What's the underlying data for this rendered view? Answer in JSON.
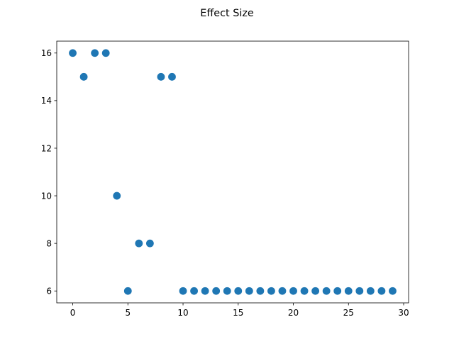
{
  "chart_data": {
    "type": "scatter",
    "title": "Effect Size",
    "xlabel": "",
    "ylabel": "",
    "x": [
      0,
      1,
      2,
      3,
      4,
      5,
      6,
      7,
      8,
      9,
      10,
      11,
      12,
      13,
      14,
      15,
      16,
      17,
      18,
      19,
      20,
      21,
      22,
      23,
      24,
      25,
      26,
      27,
      28,
      29
    ],
    "y": [
      16,
      15,
      16,
      16,
      10,
      6,
      8,
      8,
      15,
      15,
      6,
      6,
      6,
      6,
      6,
      6,
      6,
      6,
      6,
      6,
      6,
      6,
      6,
      6,
      6,
      6,
      6,
      6,
      6,
      6
    ],
    "xlim": [
      -1.45,
      30.45
    ],
    "ylim": [
      5.5,
      16.5
    ],
    "xticks": [
      0,
      5,
      10,
      15,
      20,
      25,
      30
    ],
    "yticks": [
      6,
      8,
      10,
      12,
      14,
      16
    ],
    "xtick_labels": [
      "0",
      "5",
      "10",
      "15",
      "20",
      "25",
      "30"
    ],
    "ytick_labels": [
      "6",
      "8",
      "10",
      "12",
      "14",
      "16"
    ],
    "grid": false,
    "marker_color": "#1f77b4"
  }
}
